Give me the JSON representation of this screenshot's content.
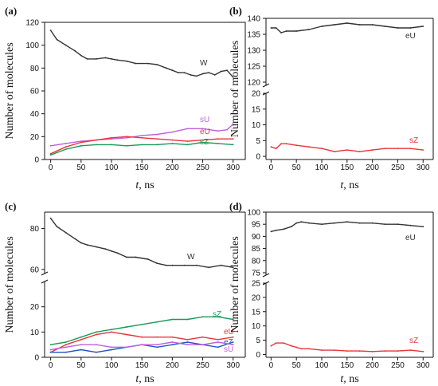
{
  "chart_data": [
    {
      "panel_label": "(a)",
      "type": "line",
      "xlabel_var": "t",
      "xlabel_unit": ", ns",
      "ylabel": "Number of molecules",
      "xlim": [
        -10,
        320
      ],
      "x_ticks": [
        "0",
        "50",
        "100",
        "150",
        "200",
        "250",
        "300"
      ],
      "y_ticks": [
        "0",
        "20",
        "40",
        "60",
        "80",
        "100",
        "120"
      ],
      "ylim": [
        0,
        120
      ],
      "series": [
        {
          "name": "W",
          "color": "#333333",
          "x": [
            0,
            10,
            25,
            40,
            50,
            60,
            75,
            90,
            100,
            110,
            125,
            140,
            160,
            175,
            190,
            200,
            210,
            220,
            230,
            240,
            250,
            260,
            270,
            280,
            290,
            300
          ],
          "y": [
            113,
            105,
            100,
            95,
            91,
            88,
            88,
            89,
            88,
            87,
            86,
            84,
            84,
            83,
            80,
            78,
            76,
            76,
            74,
            73,
            75,
            76,
            74,
            77,
            78,
            72
          ]
        },
        {
          "name": "sU",
          "color": "#c05fd9",
          "x": [
            0,
            25,
            50,
            75,
            100,
            125,
            150,
            175,
            200,
            225,
            250,
            275,
            290,
            300
          ],
          "y": [
            12,
            14,
            16,
            17,
            18,
            19,
            21,
            22,
            24,
            27,
            27,
            25,
            26,
            31
          ]
        },
        {
          "name": "eU",
          "color": "#e8343a",
          "x": [
            0,
            25,
            50,
            75,
            100,
            125,
            150,
            175,
            200,
            225,
            250,
            275,
            300
          ],
          "y": [
            5,
            11,
            15,
            17,
            19,
            20,
            19,
            18,
            17,
            16,
            17,
            18,
            18
          ]
        },
        {
          "name": "sZ",
          "color": "#1a9a5a",
          "x": [
            0,
            25,
            50,
            75,
            100,
            125,
            150,
            175,
            200,
            225,
            250,
            275,
            300
          ],
          "y": [
            4,
            9,
            12,
            13,
            13,
            12,
            13,
            13,
            14,
            13,
            15,
            14,
            13
          ]
        }
      ]
    },
    {
      "panel_label": "(b)",
      "type": "line",
      "xlabel_var": "t",
      "xlabel_unit": ", ns",
      "ylabel": "Number of molecules",
      "xlim": [
        -10,
        320
      ],
      "x_ticks": [
        "0",
        "50",
        "100",
        "150",
        "200",
        "250",
        "300"
      ],
      "y_ticks_upper": [
        "120",
        "125",
        "130",
        "135",
        "140"
      ],
      "y_ticks_lower": [
        "0",
        "5",
        "10",
        "15",
        "20"
      ],
      "ylim_upper": [
        119,
        140
      ],
      "ylim_lower": [
        -1,
        20
      ],
      "series": [
        {
          "name": "eU",
          "segment": "upper",
          "color": "#333333",
          "x": [
            0,
            10,
            20,
            30,
            50,
            75,
            100,
            125,
            150,
            175,
            200,
            225,
            250,
            275,
            300
          ],
          "y": [
            137,
            137,
            135.5,
            136,
            136,
            136.5,
            137.5,
            138,
            138.5,
            138,
            138,
            137.5,
            137,
            137,
            137.5
          ]
        },
        {
          "name": "sZ",
          "segment": "lower",
          "color": "#e8343a",
          "x": [
            0,
            10,
            20,
            30,
            50,
            75,
            100,
            125,
            150,
            175,
            200,
            225,
            250,
            275,
            300
          ],
          "y": [
            3,
            2.5,
            4,
            4,
            3.5,
            3,
            2.5,
            1.5,
            2,
            1.5,
            2,
            2.5,
            2.5,
            2.5,
            2
          ]
        }
      ]
    },
    {
      "panel_label": "(c)",
      "type": "line",
      "xlabel_var": "t",
      "xlabel_unit": ", ns",
      "ylabel": "Number of molecules",
      "xlim": [
        -10,
        320
      ],
      "x_ticks": [
        "0",
        "50",
        "100",
        "150",
        "200",
        "250",
        "300"
      ],
      "y_ticks_upper": [
        "60",
        "80"
      ],
      "y_ticks_lower": [
        "0",
        "10",
        "20"
      ],
      "ylim_upper": [
        58,
        88
      ],
      "ylim_lower": [
        0,
        30
      ],
      "series": [
        {
          "name": "W",
          "segment": "upper",
          "color": "#333333",
          "x": [
            0,
            10,
            25,
            40,
            50,
            60,
            75,
            90,
            100,
            110,
            125,
            140,
            160,
            175,
            190,
            200,
            220,
            240,
            260,
            280,
            300
          ],
          "y": [
            85,
            81,
            78,
            75,
            73,
            72,
            71,
            70,
            69,
            68,
            66,
            66,
            65,
            63,
            62,
            62,
            62,
            62,
            61,
            62,
            61
          ]
        },
        {
          "name": "sZ",
          "segment": "lower",
          "color": "#1a9a5a",
          "x": [
            0,
            25,
            50,
            75,
            100,
            125,
            150,
            175,
            200,
            225,
            250,
            275,
            300
          ],
          "y": [
            5,
            6,
            8,
            10,
            11,
            12,
            13,
            14,
            15,
            15,
            16,
            16,
            15
          ]
        },
        {
          "name": "eU",
          "segment": "lower",
          "color": "#e8343a",
          "x": [
            0,
            25,
            50,
            75,
            100,
            125,
            150,
            175,
            200,
            225,
            250,
            275,
            300
          ],
          "y": [
            2,
            5,
            7,
            9,
            10,
            9,
            8,
            8,
            8,
            7,
            8,
            7,
            8
          ]
        },
        {
          "name": "eZ",
          "segment": "lower",
          "color": "#2255c8",
          "x": [
            0,
            25,
            50,
            75,
            100,
            125,
            150,
            175,
            200,
            225,
            250,
            275,
            300
          ],
          "y": [
            2,
            2,
            3,
            2,
            3,
            4,
            5,
            4,
            5,
            6,
            5,
            4,
            6
          ]
        },
        {
          "name": "sU",
          "segment": "lower",
          "color": "#c05fd9",
          "x": [
            0,
            25,
            50,
            75,
            100,
            125,
            150,
            175,
            200,
            225,
            250,
            275,
            300
          ],
          "y": [
            3,
            4,
            5,
            5,
            4,
            4,
            5,
            5,
            6,
            5,
            5,
            6,
            5
          ]
        }
      ]
    },
    {
      "panel_label": "(d)",
      "type": "line",
      "xlabel_var": "t",
      "xlabel_unit": ", ns",
      "ylabel": "Number of molecules",
      "xlim": [
        -10,
        320
      ],
      "x_ticks": [
        "0",
        "50",
        "100",
        "150",
        "200",
        "250",
        "300"
      ],
      "y_ticks_upper": [
        "75",
        "80",
        "85",
        "90",
        "95",
        "100"
      ],
      "y_ticks_lower": [
        "0",
        "5",
        "10",
        "15",
        "20",
        "25"
      ],
      "ylim_upper": [
        74,
        100
      ],
      "ylim_lower": [
        -1,
        25
      ],
      "series": [
        {
          "name": "eU",
          "segment": "upper",
          "color": "#333333",
          "x": [
            0,
            10,
            25,
            40,
            50,
            60,
            75,
            100,
            125,
            150,
            175,
            200,
            225,
            250,
            275,
            300
          ],
          "y": [
            92,
            92.5,
            93,
            94,
            95.5,
            96,
            95.5,
            95,
            95.5,
            96,
            95.5,
            95.5,
            95,
            95,
            94.5,
            94
          ]
        },
        {
          "name": "sZ",
          "segment": "lower",
          "color": "#e8343a",
          "x": [
            0,
            10,
            25,
            40,
            50,
            60,
            75,
            100,
            125,
            150,
            175,
            200,
            225,
            250,
            275,
            300
          ],
          "y": [
            3,
            4,
            4,
            3,
            2.5,
            2,
            2,
            1.5,
            1.5,
            1.2,
            1.2,
            1,
            1.2,
            1.2,
            1.5,
            1
          ]
        }
      ]
    }
  ]
}
